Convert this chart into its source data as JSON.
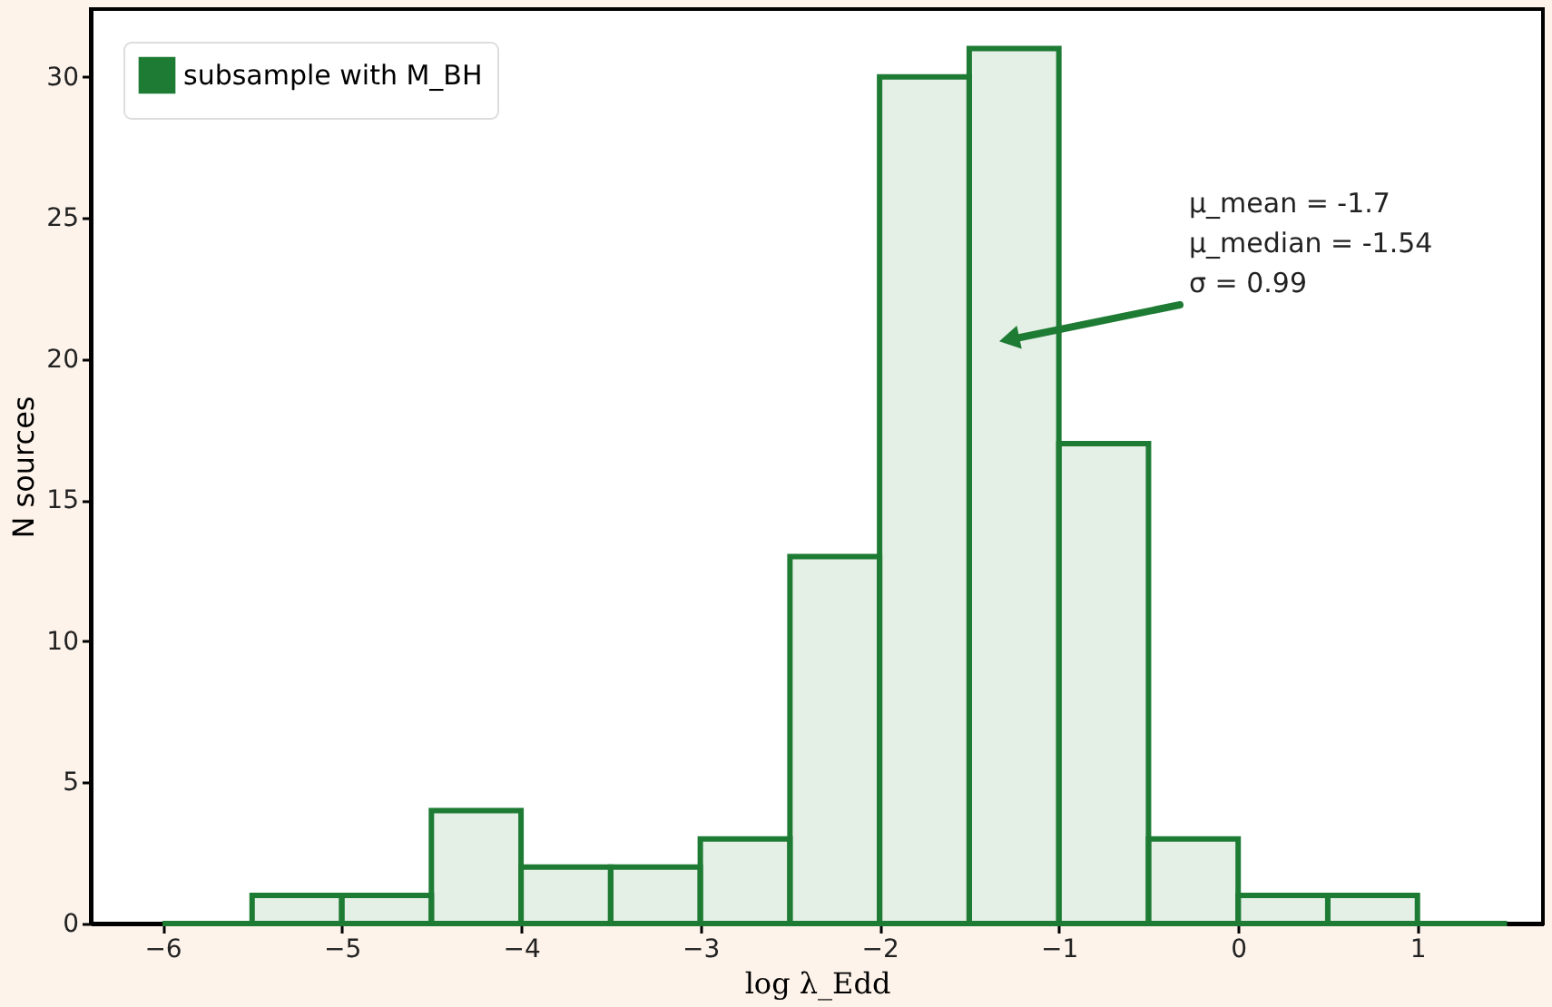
{
  "chart_data": {
    "type": "histogram",
    "xlabel": "log λ_Edd",
    "ylabel": "N sources",
    "bins": [
      -6,
      -5.5,
      -5,
      -4.5,
      -4,
      -3.5,
      -3,
      -2.5,
      -2,
      -1.5,
      -1,
      -0.5,
      0,
      0.5,
      1,
      1.5
    ],
    "series": [
      {
        "name": "subsample with M_BH",
        "color": "#1e7b34",
        "values": [
          0,
          1,
          1,
          4,
          2,
          2,
          3,
          13,
          30,
          31,
          17,
          3,
          1,
          1,
          0
        ]
      }
    ],
    "xlim": [
      -6.4,
      1.7
    ],
    "xticks": [
      {
        "value": -6,
        "label": "−6"
      },
      {
        "value": -5,
        "label": "−5"
      },
      {
        "value": -4,
        "label": "−4"
      },
      {
        "value": -3,
        "label": "−3"
      },
      {
        "value": -2,
        "label": "−2"
      },
      {
        "value": -1,
        "label": "−1"
      },
      0,
      1
    ],
    "ylim": [
      0,
      32.4
    ],
    "yticks": [
      0,
      5,
      10,
      15,
      20,
      25,
      30
    ],
    "annotations": [
      "μ_mean = -1.7\nμ_median = -1.54\nσ = 0.99"
    ],
    "grid": false,
    "legend": "top left"
  }
}
